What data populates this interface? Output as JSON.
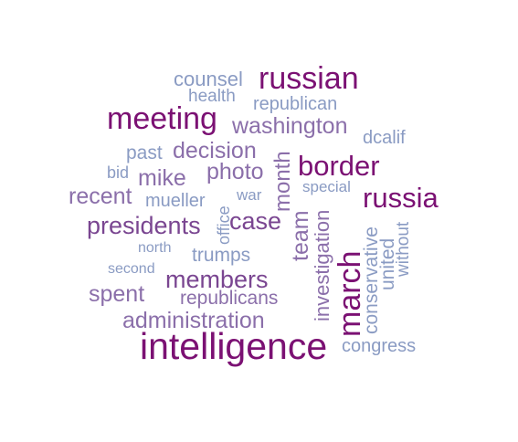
{
  "colors": {
    "dark_purple": "#7B1173",
    "purple": "#7A4691",
    "medium_purple": "#8B6FAA",
    "slate": "#8A9BC3",
    "background": "#FFFFFF"
  },
  "words": [
    {
      "id": "intelligence",
      "text": "intelligence"
    },
    {
      "id": "march",
      "text": "march"
    },
    {
      "id": "russian",
      "text": "russian"
    },
    {
      "id": "meeting",
      "text": "meeting"
    },
    {
      "id": "border",
      "text": "border"
    },
    {
      "id": "russia",
      "text": "russia"
    },
    {
      "id": "washington",
      "text": "washington"
    },
    {
      "id": "administration",
      "text": "administration"
    },
    {
      "id": "presidents",
      "text": "presidents"
    },
    {
      "id": "members",
      "text": "members"
    },
    {
      "id": "decision",
      "text": "decision"
    },
    {
      "id": "case",
      "text": "case"
    },
    {
      "id": "photo",
      "text": "photo"
    },
    {
      "id": "month",
      "text": "month"
    },
    {
      "id": "team",
      "text": "team"
    },
    {
      "id": "investigation",
      "text": "investigation"
    },
    {
      "id": "mike",
      "text": "mike"
    },
    {
      "id": "recent",
      "text": "recent"
    },
    {
      "id": "spent",
      "text": "spent"
    },
    {
      "id": "republicans",
      "text": "republicans"
    },
    {
      "id": "counsel",
      "text": "counsel"
    },
    {
      "id": "health",
      "text": "health"
    },
    {
      "id": "republican",
      "text": "republican"
    },
    {
      "id": "dcalif",
      "text": "dcalif"
    },
    {
      "id": "past",
      "text": "past"
    },
    {
      "id": "bid",
      "text": "bid"
    },
    {
      "id": "mueller",
      "text": "mueller"
    },
    {
      "id": "war",
      "text": "war"
    },
    {
      "id": "special",
      "text": "special"
    },
    {
      "id": "office",
      "text": "office"
    },
    {
      "id": "north",
      "text": "north"
    },
    {
      "id": "trumps",
      "text": "trumps"
    },
    {
      "id": "second",
      "text": "second"
    },
    {
      "id": "conservative",
      "text": "conservative"
    },
    {
      "id": "united",
      "text": "united"
    },
    {
      "id": "without",
      "text": "without"
    },
    {
      "id": "congress",
      "text": "congress"
    }
  ]
}
